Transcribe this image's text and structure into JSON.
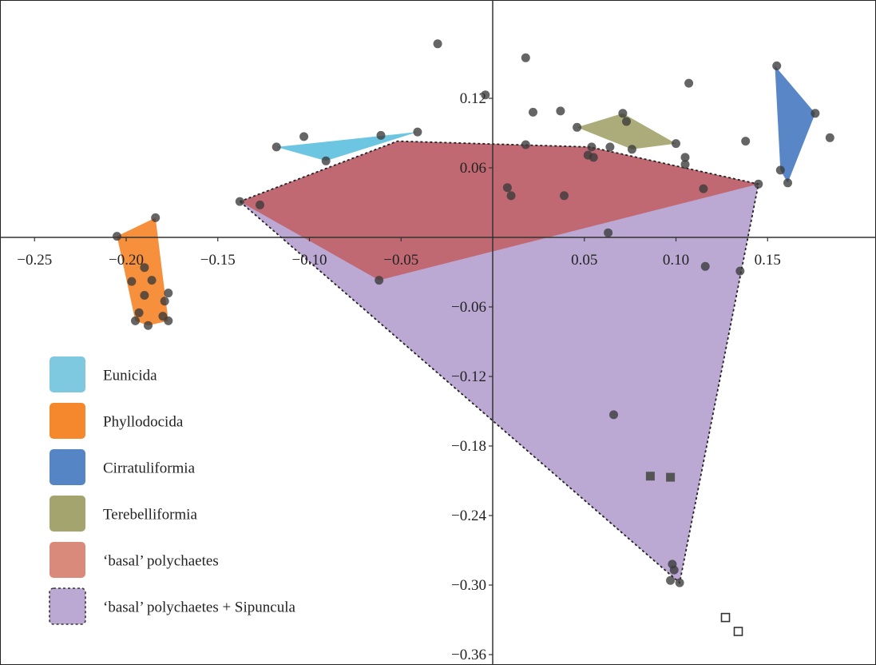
{
  "chart_data": {
    "type": "scatter",
    "title": "",
    "xlabel": "",
    "ylabel": "",
    "xlim": [
      -0.265,
      0.205
    ],
    "ylim": [
      -0.365,
      0.195
    ],
    "x_ticks": [
      -0.25,
      -0.2,
      -0.15,
      -0.1,
      -0.05,
      0.05,
      0.1,
      0.15
    ],
    "x_tick_labels": [
      "−0.25",
      "−0.20",
      "−0.15",
      "−0.10",
      "−0.05",
      "0.05",
      "0.10",
      "0.15"
    ],
    "y_ticks": [
      0.12,
      0.06,
      -0.06,
      -0.12,
      -0.18,
      -0.24,
      -0.3,
      -0.36
    ],
    "y_tick_labels": [
      "0.12",
      "0.06",
      "−0.06",
      "−0.12",
      "−0.18",
      "−0.24",
      "−0.30",
      "−0.36"
    ],
    "grid": false,
    "legend_position": "bottom-left",
    "colors": {
      "eunicida": "#7ec8e0",
      "phyllodocida": "#f5872c",
      "cirratuliformia": "#5585c5",
      "terebelliformia": "#a4a56e",
      "basal": "#d98a7a",
      "basal_sipuncula": "#bba9d4",
      "hull_overlay_basal": "#c0646a",
      "points": "#3a3a3a"
    },
    "legend": [
      {
        "key": "eunicida",
        "label": "Eunicida",
        "color": "#7ec8e0",
        "dashed": false
      },
      {
        "key": "phyllodocida",
        "label": "Phyllodocida",
        "color": "#f5872c",
        "dashed": false
      },
      {
        "key": "cirratuliformia",
        "label": "Cirratuliformia",
        "color": "#5585c5",
        "dashed": false
      },
      {
        "key": "terebelliformia",
        "label": "Terebelliformia",
        "color": "#a4a56e",
        "dashed": false
      },
      {
        "key": "basal",
        "label": "‘basal’ polychaetes",
        "color": "#d98a7a",
        "dashed": false
      },
      {
        "key": "basal_sipuncula",
        "label": "‘basal’ polychaetes + Sipuncula",
        "color": "#bba9d4",
        "dashed": true
      }
    ],
    "hulls": [
      {
        "name": "basal_sipuncula",
        "fill": "#bba9d4",
        "opacity": 1,
        "dashed": true,
        "points": [
          [
            -0.138,
            0.031
          ],
          [
            -0.052,
            0.083
          ],
          [
            0.053,
            0.078
          ],
          [
            0.145,
            0.046
          ],
          [
            0.102,
            -0.298
          ]
        ]
      },
      {
        "name": "basal",
        "fill": "#c0646a",
        "opacity": 0.92,
        "dashed": false,
        "points": [
          [
            -0.138,
            0.031
          ],
          [
            -0.052,
            0.083
          ],
          [
            0.053,
            0.078
          ],
          [
            0.145,
            0.046
          ],
          [
            -0.062,
            -0.037
          ]
        ]
      },
      {
        "name": "eunicida",
        "fill": "#5fc0de",
        "opacity": 0.92,
        "dashed": false,
        "points": [
          [
            -0.118,
            0.078
          ],
          [
            -0.041,
            0.091
          ],
          [
            -0.091,
            0.066
          ]
        ]
      },
      {
        "name": "phyllodocida",
        "fill": "#f5872c",
        "opacity": 0.92,
        "dashed": false,
        "points": [
          [
            -0.205,
            0.001
          ],
          [
            -0.184,
            0.017
          ],
          [
            -0.177,
            -0.072
          ],
          [
            -0.188,
            -0.076
          ],
          [
            -0.195,
            -0.072
          ]
        ]
      },
      {
        "name": "cirratuliformia",
        "fill": "#4f7fc4",
        "opacity": 0.95,
        "dashed": false,
        "points": [
          [
            0.154,
            0.148
          ],
          [
            0.176,
            0.107
          ],
          [
            0.161,
            0.047
          ],
          [
            0.157,
            0.058
          ]
        ]
      },
      {
        "name": "terebelliformia",
        "fill": "#a4a56e",
        "opacity": 0.92,
        "dashed": false,
        "points": [
          [
            0.046,
            0.095
          ],
          [
            0.071,
            0.107
          ],
          [
            0.1,
            0.081
          ],
          [
            0.076,
            0.076
          ]
        ]
      }
    ],
    "dashed_outline": [
      [
        -0.138,
        0.031
      ],
      [
        -0.052,
        0.083
      ],
      [
        0.053,
        0.078
      ],
      [
        0.145,
        0.046
      ],
      [
        0.102,
        -0.298
      ],
      [
        -0.138,
        0.031
      ]
    ],
    "points": [
      [
        -0.03,
        0.167
      ],
      [
        0.018,
        0.155
      ],
      [
        0.155,
        0.148
      ],
      [
        0.107,
        0.133
      ],
      [
        -0.004,
        0.123
      ],
      [
        0.022,
        0.108
      ],
      [
        0.037,
        0.109
      ],
      [
        0.071,
        0.107
      ],
      [
        0.073,
        0.1
      ],
      [
        0.046,
        0.095
      ],
      [
        0.176,
        0.107
      ],
      [
        0.184,
        0.086
      ],
      [
        0.138,
        0.083
      ],
      [
        0.1,
        0.081
      ],
      [
        0.105,
        0.069
      ],
      [
        0.105,
        0.063
      ],
      [
        0.076,
        0.076
      ],
      [
        0.054,
        0.078
      ],
      [
        0.064,
        0.078
      ],
      [
        0.052,
        0.071
      ],
      [
        0.055,
        0.069
      ],
      [
        0.018,
        0.08
      ],
      [
        -0.041,
        0.091
      ],
      [
        -0.061,
        0.088
      ],
      [
        -0.103,
        0.087
      ],
      [
        -0.118,
        0.078
      ],
      [
        -0.091,
        0.066
      ],
      [
        0.157,
        0.058
      ],
      [
        0.161,
        0.047
      ],
      [
        0.145,
        0.046
      ],
      [
        0.115,
        0.042
      ],
      [
        0.008,
        0.043
      ],
      [
        0.01,
        0.036
      ],
      [
        0.039,
        0.036
      ],
      [
        -0.138,
        0.031
      ],
      [
        -0.127,
        0.028
      ],
      [
        0.063,
        0.004
      ],
      [
        -0.184,
        0.017
      ],
      [
        -0.205,
        0.001
      ],
      [
        -0.062,
        -0.037
      ],
      [
        0.116,
        -0.025
      ],
      [
        0.135,
        -0.029
      ],
      [
        -0.19,
        -0.026
      ],
      [
        -0.197,
        -0.038
      ],
      [
        -0.186,
        -0.037
      ],
      [
        -0.19,
        -0.05
      ],
      [
        -0.177,
        -0.048
      ],
      [
        -0.179,
        -0.055
      ],
      [
        -0.193,
        -0.065
      ],
      [
        -0.18,
        -0.068
      ],
      [
        -0.177,
        -0.072
      ],
      [
        -0.188,
        -0.076
      ],
      [
        -0.195,
        -0.072
      ],
      [
        0.066,
        -0.153
      ],
      [
        0.098,
        -0.282
      ],
      [
        0.099,
        -0.287
      ],
      [
        0.097,
        -0.296
      ],
      [
        0.102,
        -0.298
      ]
    ],
    "filled_squares": [
      [
        0.086,
        -0.206
      ],
      [
        0.097,
        -0.207
      ]
    ],
    "open_squares": [
      [
        0.127,
        -0.328
      ],
      [
        0.134,
        -0.34
      ]
    ]
  }
}
